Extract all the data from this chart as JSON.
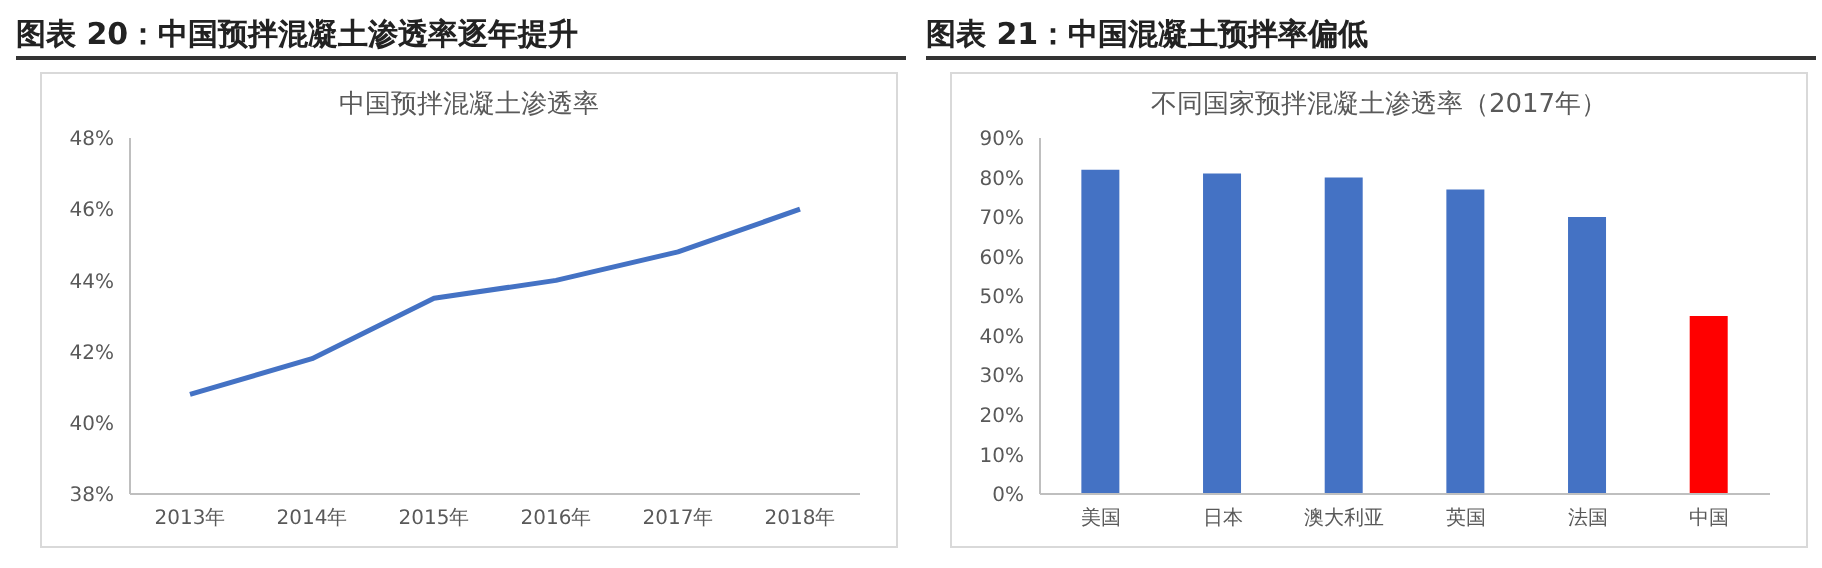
{
  "chart_data": [
    {
      "type": "line",
      "title": "图表 20：中国预拌混凝土渗透率逐年提升",
      "subtitle": "中国预拌混凝土渗透率",
      "categories": [
        "2013年",
        "2014年",
        "2015年",
        "2016年",
        "2017年",
        "2018年"
      ],
      "series": [
        {
          "color": "#4472c4",
          "values": [
            40.8,
            41.8,
            43.5,
            44.0,
            44.8,
            46.0
          ]
        }
      ],
      "ylim": [
        38,
        48
      ],
      "yticks": [
        {
          "value": 38,
          "label": "38%"
        },
        {
          "value": 40,
          "label": "40%"
        },
        {
          "value": 42,
          "label": "42%"
        },
        {
          "value": 44,
          "label": "44%"
        },
        {
          "value": 46,
          "label": "46%"
        },
        {
          "value": 48,
          "label": "48%"
        }
      ],
      "grid": false,
      "legend": false,
      "marker": "none",
      "line_style": "solid"
    },
    {
      "type": "bar",
      "title": "图表 21：中国混凝土预拌率偏低",
      "subtitle": "不同国家预拌混凝土渗透率（2017年）",
      "categories": [
        "美国",
        "日本",
        "澳大利亚",
        "英国",
        "法国",
        "中国"
      ],
      "values": [
        82,
        81,
        80,
        77,
        70,
        45
      ],
      "colors": [
        "#4472c4",
        "#4472c4",
        "#4472c4",
        "#4472c4",
        "#4472c4",
        "#ff0000"
      ],
      "ylim": [
        0,
        90
      ],
      "yticks": [
        {
          "value": 0,
          "label": "0%"
        },
        {
          "value": 10,
          "label": "10%"
        },
        {
          "value": 20,
          "label": "20%"
        },
        {
          "value": 30,
          "label": "30%"
        },
        {
          "value": 40,
          "label": "40%"
        },
        {
          "value": 50,
          "label": "50%"
        },
        {
          "value": 60,
          "label": "60%"
        },
        {
          "value": 70,
          "label": "70%"
        },
        {
          "value": 80,
          "label": "80%"
        },
        {
          "value": 90,
          "label": "90%"
        }
      ],
      "grid": false,
      "legend": false
    }
  ]
}
